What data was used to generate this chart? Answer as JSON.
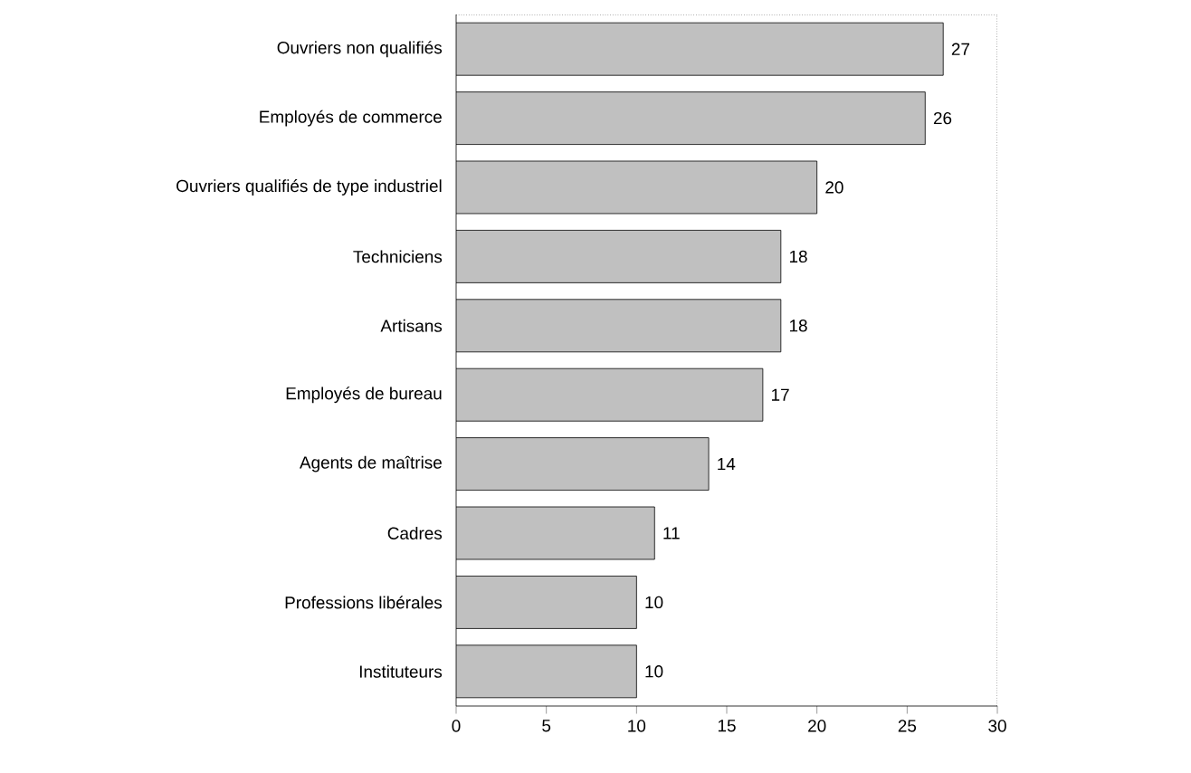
{
  "chart_data": {
    "type": "bar",
    "orientation": "horizontal",
    "categories": [
      "Ouvriers non qualifiés",
      "Employés de commerce",
      "Ouvriers qualifiés de type industriel",
      "Techniciens",
      "Artisans",
      "Employés de bureau",
      "Agents de maîtrise",
      "Cadres",
      "Professions libérales",
      "Instituteurs"
    ],
    "values": [
      27,
      26,
      20,
      18,
      18,
      17,
      14,
      11,
      10,
      10
    ],
    "color": "#c0c0c0",
    "value_labels": [
      "27",
      "26",
      "20",
      "18",
      "18",
      "17",
      "14",
      "11",
      "10",
      "10"
    ],
    "xlim": [
      0,
      30
    ],
    "xticks": [
      0,
      5,
      10,
      15,
      20,
      25,
      30
    ],
    "grid": false
  }
}
